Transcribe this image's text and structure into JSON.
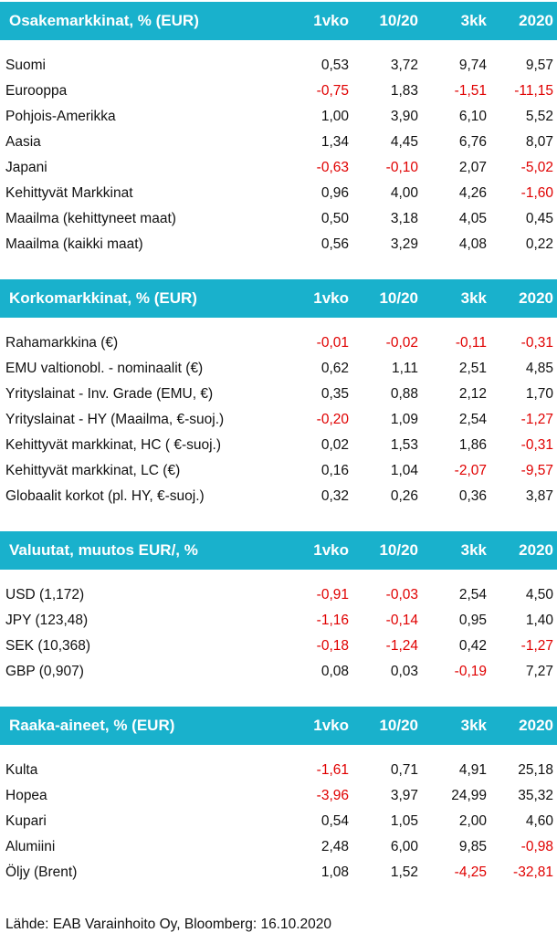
{
  "sections": [
    {
      "title": "Osakemarkkinat, % (EUR)",
      "columns": [
        "1vko",
        "10/20",
        "3kk",
        "2020"
      ],
      "rows": [
        {
          "label": "Suomi",
          "values": [
            "0,53",
            "3,72",
            "9,74",
            "9,57"
          ]
        },
        {
          "label": "Eurooppa",
          "values": [
            "-0,75",
            "1,83",
            "-1,51",
            "-11,15"
          ]
        },
        {
          "label": "Pohjois-Amerikka",
          "values": [
            "1,00",
            "3,90",
            "6,10",
            "5,52"
          ]
        },
        {
          "label": "Aasia",
          "values": [
            "1,34",
            "4,45",
            "6,76",
            "8,07"
          ]
        },
        {
          "label": "Japani",
          "values": [
            "-0,63",
            "-0,10",
            "2,07",
            "-5,02"
          ]
        },
        {
          "label": "Kehittyvät Markkinat",
          "values": [
            "0,96",
            "4,00",
            "4,26",
            "-1,60"
          ]
        },
        {
          "label": "Maailma (kehittyneet maat)",
          "values": [
            "0,50",
            "3,18",
            "4,05",
            "0,45"
          ]
        },
        {
          "label": "Maailma (kaikki maat)",
          "values": [
            "0,56",
            "3,29",
            "4,08",
            "0,22"
          ]
        }
      ]
    },
    {
      "title": "Korkomarkkinat, % (EUR)",
      "columns": [
        "1vko",
        "10/20",
        "3kk",
        "2020"
      ],
      "rows": [
        {
          "label": "Rahamarkkina (€)",
          "values": [
            "-0,01",
            "-0,02",
            "-0,11",
            "-0,31"
          ]
        },
        {
          "label": "EMU valtionobl. - nominaalit (€)",
          "values": [
            "0,62",
            "1,11",
            "2,51",
            "4,85"
          ]
        },
        {
          "label": "Yrityslainat - Inv. Grade (EMU, €)",
          "values": [
            "0,35",
            "0,88",
            "2,12",
            "1,70"
          ]
        },
        {
          "label": "Yrityslainat - HY (Maailma, €-suoj.)",
          "values": [
            "-0,20",
            "1,09",
            "2,54",
            "-1,27"
          ]
        },
        {
          "label": "Kehittyvät markkinat, HC ( €-suoj.)",
          "values": [
            "0,02",
            "1,53",
            "1,86",
            "-0,31"
          ]
        },
        {
          "label": "Kehittyvät markkinat, LC (€)",
          "values": [
            "0,16",
            "1,04",
            "-2,07",
            "-9,57"
          ]
        },
        {
          "label": "Globaalit korkot (pl. HY,  €-suoj.)",
          "values": [
            "0,32",
            "0,26",
            "0,36",
            "3,87"
          ]
        }
      ]
    },
    {
      "title": "Valuutat, muutos EUR/,  %",
      "columns": [
        "1vko",
        "10/20",
        "3kk",
        "2020"
      ],
      "rows": [
        {
          "label": "USD (1,172)",
          "values": [
            "-0,91",
            "-0,03",
            "2,54",
            "4,50"
          ]
        },
        {
          "label": "JPY (123,48)",
          "values": [
            "-1,16",
            "-0,14",
            "0,95",
            "1,40"
          ]
        },
        {
          "label": "SEK (10,368)",
          "values": [
            "-0,18",
            "-1,24",
            "0,42",
            "-1,27"
          ]
        },
        {
          "label": "GBP (0,907)",
          "values": [
            "0,08",
            "0,03",
            "-0,19",
            "7,27"
          ]
        }
      ]
    },
    {
      "title": "Raaka-aineet, % (EUR)",
      "columns": [
        "1vko",
        "10/20",
        "3kk",
        "2020"
      ],
      "rows": [
        {
          "label": "Kulta",
          "values": [
            "-1,61",
            "0,71",
            "4,91",
            "25,18"
          ]
        },
        {
          "label": "Hopea",
          "values": [
            "-3,96",
            "3,97",
            "24,99",
            "35,32"
          ]
        },
        {
          "label": "Kupari",
          "values": [
            "0,54",
            "1,05",
            "2,00",
            "4,60"
          ]
        },
        {
          "label": "Alumiini",
          "values": [
            "2,48",
            "6,00",
            "9,85",
            "-0,98"
          ]
        },
        {
          "label": "Öljy (Brent)",
          "values": [
            "1,08",
            "1,52",
            "-4,25",
            "-32,81"
          ]
        }
      ]
    }
  ],
  "footer": "Lähde: EAB Varainhoito Oy, Bloomberg: 16.10.2020"
}
